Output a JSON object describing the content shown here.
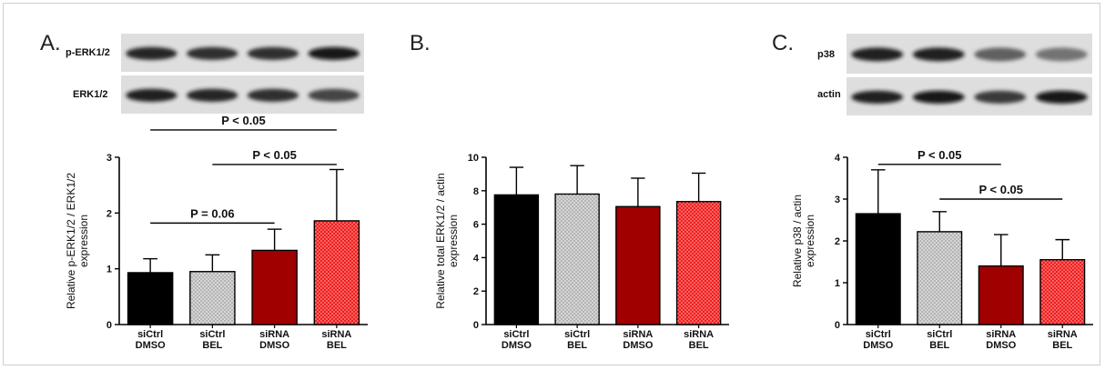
{
  "panels": [
    {
      "letter": "A.",
      "blots": [
        {
          "label": "p-ERK1/2",
          "intensities": [
            0.85,
            0.8,
            0.8,
            0.95
          ]
        },
        {
          "label": "ERK1/2",
          "intensities": [
            0.9,
            0.85,
            0.8,
            0.7
          ]
        }
      ]
    },
    {
      "letter": "B.",
      "blots": []
    },
    {
      "letter": "C.",
      "blots": [
        {
          "label": "p38",
          "intensities": [
            0.9,
            0.9,
            0.55,
            0.45
          ]
        },
        {
          "label": "actin",
          "intensities": [
            0.9,
            0.95,
            0.75,
            0.95
          ]
        }
      ]
    }
  ],
  "colors": {
    "siCtrl_DMSO": "#000000",
    "siCtrl_BEL": "#b4b4b4",
    "siRNA_DMSO": "#a00000",
    "siRNA_BEL": "#f01e1e"
  },
  "chart_data": [
    {
      "type": "bar",
      "ylabel_lines": [
        "Relative p-ERK1/2 / ERK1/2",
        "expression"
      ],
      "categories": [
        [
          "siCtrl",
          "DMSO"
        ],
        [
          "siCtrl",
          "BEL"
        ],
        [
          "siRNA",
          "DMSO"
        ],
        [
          "siRNA",
          "BEL"
        ]
      ],
      "values": [
        0.93,
        0.95,
        1.33,
        1.86
      ],
      "errors": [
        0.25,
        0.3,
        0.38,
        0.92
      ],
      "ylim": [
        0,
        3
      ],
      "yticks": [
        "0",
        "1",
        "2",
        "3"
      ],
      "grid": false,
      "annotations": [
        {
          "text": "P < 0.05",
          "from": 0,
          "to": 3,
          "level": 3.49
        },
        {
          "text": "P < 0.05",
          "from": 1,
          "to": 3,
          "level": 2.87
        },
        {
          "text": "P = 0.06",
          "from": 0,
          "to": 2,
          "level": 1.82
        }
      ]
    },
    {
      "type": "bar",
      "ylabel_lines": [
        "Relative total ERK1/2 / actin",
        "expression"
      ],
      "categories": [
        [
          "siCtrl",
          "DMSO"
        ],
        [
          "siCtrl",
          "BEL"
        ],
        [
          "siRNA",
          "DMSO"
        ],
        [
          "siRNA",
          "BEL"
        ]
      ],
      "values": [
        7.75,
        7.8,
        7.05,
        7.35
      ],
      "errors": [
        1.65,
        1.7,
        1.7,
        1.7
      ],
      "ylim": [
        0,
        10
      ],
      "yticks": [
        "0",
        "2",
        "4",
        "6",
        "8",
        "10"
      ],
      "grid": false,
      "annotations": []
    },
    {
      "type": "bar",
      "ylabel_lines": [
        "Relative  p38 / actin",
        "expression"
      ],
      "categories": [
        [
          "siCtrl",
          "DMSO"
        ],
        [
          "siCtrl",
          "BEL"
        ],
        [
          "siRNA",
          "DMSO"
        ],
        [
          "siRNA",
          "BEL"
        ]
      ],
      "values": [
        2.65,
        2.22,
        1.4,
        1.55
      ],
      "errors": [
        1.05,
        0.48,
        0.75,
        0.48
      ],
      "ylim": [
        0,
        4
      ],
      "yticks": [
        "0",
        "1",
        "2",
        "3",
        "4"
      ],
      "grid": false,
      "annotations": [
        {
          "text": "P < 0.05",
          "from": 0,
          "to": 2,
          "level": 3.83
        },
        {
          "text": "P < 0.05",
          "from": 1,
          "to": 3,
          "level": 3.0
        }
      ]
    }
  ]
}
